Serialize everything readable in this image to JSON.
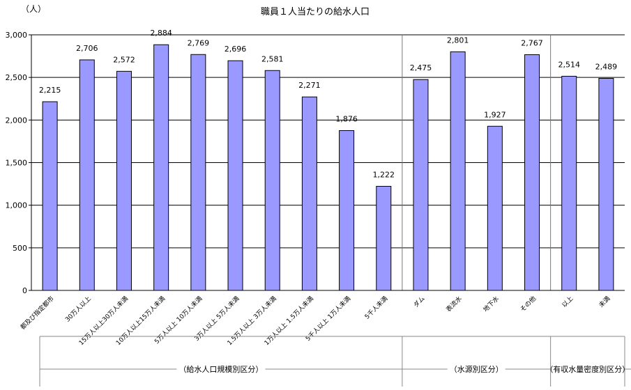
{
  "chart_data": {
    "type": "bar",
    "title": "職員１人当たりの給水人口",
    "y_unit": "（人）",
    "ylim": [
      0,
      3000
    ],
    "yticks": [
      0,
      500,
      1000,
      1500,
      2000,
      2500,
      3000
    ],
    "ytick_labels": [
      "0",
      "500",
      "1,000",
      "1,500",
      "2,000",
      "2,500",
      "3,000"
    ],
    "grid": true,
    "bar_color": "#9999FF",
    "categories": [
      "都及び指定都市",
      "30万人以上",
      "15万人以上30万人未満",
      "10万人以上15万人未満",
      "5万人以上 10万人未満",
      "3万人以上 5万人未満",
      "1.5万人以上 3万人未満",
      "1万人以上 1.5万人未満",
      "5千人以上 1万人未満",
      "5千人未満",
      "ダム",
      "表流水",
      "地下水",
      "その他",
      "以上",
      "未満"
    ],
    "values": [
      2215,
      2706,
      2572,
      2884,
      2769,
      2696,
      2581,
      2271,
      1876,
      1222,
      2475,
      2801,
      1927,
      2767,
      2514,
      2489
    ],
    "value_labels": [
      "2,215",
      "2,706",
      "2,572",
      "2,884",
      "2,769",
      "2,696",
      "2,581",
      "2,271",
      "1,876",
      "1,222",
      "2,475",
      "2,801",
      "1,927",
      "2,767",
      "2,514",
      "2,489"
    ],
    "groups": [
      {
        "label": "（給水人口規模別区分）",
        "start": 0,
        "end": 9
      },
      {
        "label": "（水源別区分）",
        "start": 10,
        "end": 13
      },
      {
        "label": "（有収水量密度別区分）",
        "start": 14,
        "end": 15
      }
    ]
  }
}
